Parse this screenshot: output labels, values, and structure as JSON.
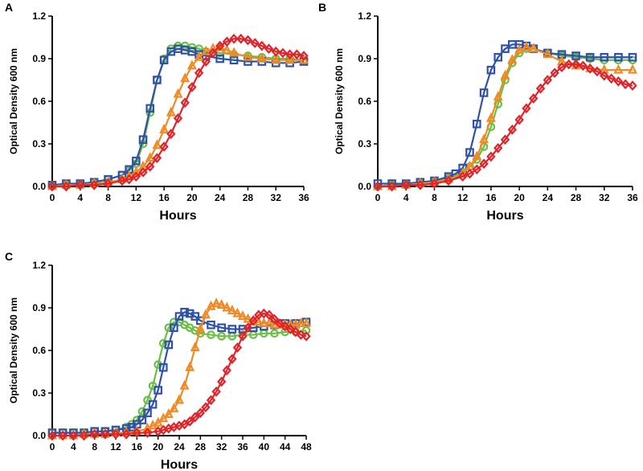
{
  "figure": {
    "panel_labels": [
      "A",
      "B",
      "C"
    ]
  },
  "chart_data": [
    {
      "panel": "A",
      "type": "line",
      "title": "",
      "xlabel": "Hours",
      "ylabel": "Optical Density 600 nm",
      "xlim": [
        0,
        36
      ],
      "ylim": [
        0,
        1.2
      ],
      "xticks": [
        "0",
        "4",
        "8",
        "12",
        "16",
        "20",
        "24",
        "28",
        "32",
        "36"
      ],
      "yticks": [
        "0.0",
        "0.3",
        "0.6",
        "0.9",
        "1.2"
      ],
      "series": [
        {
          "name": "green",
          "marker": "circle",
          "color": "#6abf45",
          "x": [
            0,
            2,
            4,
            6,
            8,
            10,
            11,
            12,
            13,
            14,
            15,
            16,
            17,
            18,
            19,
            20,
            21,
            22,
            24,
            26,
            28,
            30,
            32,
            34,
            36
          ],
          "y": [
            0.01,
            0.01,
            0.02,
            0.03,
            0.05,
            0.08,
            0.11,
            0.16,
            0.3,
            0.52,
            0.75,
            0.9,
            0.97,
            0.99,
            0.99,
            0.98,
            0.97,
            0.95,
            0.94,
            0.93,
            0.92,
            0.91,
            0.9,
            0.9,
            0.89
          ]
        },
        {
          "name": "blue",
          "marker": "square",
          "color": "#2f52a8",
          "x": [
            0,
            2,
            4,
            6,
            8,
            10,
            11,
            12,
            13,
            14,
            15,
            16,
            17,
            18,
            19,
            20,
            21,
            22,
            24,
            26,
            28,
            30,
            32,
            34,
            36
          ],
          "y": [
            0.01,
            0.02,
            0.02,
            0.03,
            0.05,
            0.08,
            0.12,
            0.18,
            0.33,
            0.55,
            0.75,
            0.89,
            0.95,
            0.97,
            0.96,
            0.95,
            0.93,
            0.92,
            0.9,
            0.89,
            0.88,
            0.88,
            0.87,
            0.87,
            0.88
          ]
        },
        {
          "name": "orange",
          "marker": "triangle",
          "color": "#f08a24",
          "x": [
            0,
            2,
            4,
            6,
            8,
            10,
            11,
            12,
            13,
            14,
            15,
            16,
            17,
            18,
            19,
            20,
            21,
            22,
            23,
            24,
            25,
            26,
            28,
            30,
            32,
            34,
            36
          ],
          "y": [
            0.0,
            0.01,
            0.01,
            0.02,
            0.03,
            0.05,
            0.07,
            0.1,
            0.14,
            0.2,
            0.29,
            0.4,
            0.52,
            0.65,
            0.76,
            0.85,
            0.91,
            0.95,
            0.97,
            0.98,
            0.96,
            0.94,
            0.91,
            0.9,
            0.89,
            0.89,
            0.89
          ]
        },
        {
          "name": "red",
          "marker": "diamond",
          "color": "#e0232a",
          "x": [
            0,
            2,
            4,
            6,
            8,
            10,
            11,
            12,
            13,
            14,
            15,
            16,
            17,
            18,
            19,
            20,
            21,
            22,
            23,
            24,
            25,
            26,
            27,
            28,
            29,
            30,
            31,
            32,
            33,
            34,
            35,
            36
          ],
          "y": [
            0.0,
            0.0,
            0.01,
            0.01,
            0.02,
            0.04,
            0.05,
            0.07,
            0.1,
            0.14,
            0.2,
            0.28,
            0.37,
            0.48,
            0.59,
            0.7,
            0.8,
            0.88,
            0.94,
            0.99,
            1.02,
            1.04,
            1.04,
            1.03,
            1.01,
            0.99,
            0.97,
            0.95,
            0.94,
            0.93,
            0.93,
            0.92
          ]
        }
      ]
    },
    {
      "panel": "B",
      "type": "line",
      "title": "",
      "xlabel": "Hours",
      "ylabel": "Optical Density 600 nm",
      "xlim": [
        0,
        36
      ],
      "ylim": [
        0,
        1.2
      ],
      "xticks": [
        "0",
        "4",
        "8",
        "12",
        "16",
        "20",
        "24",
        "28",
        "32",
        "36"
      ],
      "yticks": [
        "0.0",
        "0.3",
        "0.6",
        "0.9",
        "1.2"
      ],
      "series": [
        {
          "name": "green",
          "marker": "circle",
          "color": "#6abf45",
          "x": [
            0,
            2,
            4,
            6,
            8,
            10,
            12,
            13,
            14,
            15,
            16,
            17,
            18,
            19,
            20,
            21,
            22,
            24,
            26,
            28,
            30,
            32,
            34,
            36
          ],
          "y": [
            0.0,
            0.01,
            0.01,
            0.02,
            0.03,
            0.06,
            0.1,
            0.14,
            0.19,
            0.28,
            0.42,
            0.58,
            0.75,
            0.87,
            0.94,
            0.97,
            0.97,
            0.94,
            0.92,
            0.91,
            0.9,
            0.89,
            0.89,
            0.89
          ]
        },
        {
          "name": "blue",
          "marker": "square",
          "color": "#2f52a8",
          "x": [
            0,
            2,
            4,
            6,
            8,
            10,
            11,
            12,
            13,
            14,
            15,
            16,
            17,
            18,
            19,
            20,
            21,
            22,
            24,
            26,
            28,
            30,
            32,
            34,
            36
          ],
          "y": [
            0.02,
            0.02,
            0.02,
            0.03,
            0.04,
            0.07,
            0.09,
            0.13,
            0.24,
            0.44,
            0.66,
            0.82,
            0.91,
            0.97,
            1.0,
            1.0,
            0.99,
            0.97,
            0.94,
            0.93,
            0.92,
            0.91,
            0.91,
            0.91,
            0.91
          ]
        },
        {
          "name": "orange",
          "marker": "triangle",
          "color": "#f08a24",
          "x": [
            0,
            2,
            4,
            6,
            8,
            10,
            12,
            13,
            14,
            15,
            16,
            17,
            18,
            19,
            20,
            21,
            22,
            24,
            26,
            28,
            30,
            32,
            34,
            36
          ],
          "y": [
            0.0,
            0.0,
            0.01,
            0.02,
            0.03,
            0.05,
            0.09,
            0.14,
            0.21,
            0.33,
            0.48,
            0.63,
            0.78,
            0.89,
            0.96,
            0.98,
            0.97,
            0.93,
            0.88,
            0.85,
            0.83,
            0.82,
            0.82,
            0.82
          ]
        },
        {
          "name": "red",
          "marker": "diamond",
          "color": "#e0232a",
          "x": [
            0,
            2,
            4,
            6,
            8,
            10,
            12,
            13,
            14,
            15,
            16,
            17,
            18,
            19,
            20,
            21,
            22,
            23,
            24,
            25,
            26,
            27,
            28,
            29,
            30,
            31,
            32,
            33,
            34,
            35,
            36
          ],
          "y": [
            0.0,
            0.0,
            0.01,
            0.01,
            0.02,
            0.04,
            0.07,
            0.09,
            0.12,
            0.16,
            0.21,
            0.27,
            0.33,
            0.4,
            0.47,
            0.55,
            0.62,
            0.69,
            0.75,
            0.8,
            0.84,
            0.86,
            0.86,
            0.85,
            0.83,
            0.81,
            0.78,
            0.76,
            0.74,
            0.72,
            0.71
          ]
        }
      ]
    },
    {
      "panel": "C",
      "type": "line",
      "title": "",
      "xlabel": "Hours",
      "ylabel": "Optical Density 600 nm",
      "xlim": [
        0,
        48
      ],
      "ylim": [
        0,
        1.2
      ],
      "xticks": [
        "0",
        "4",
        "8",
        "12",
        "16",
        "20",
        "24",
        "28",
        "32",
        "36",
        "40",
        "44",
        "48"
      ],
      "yticks": [
        "0.0",
        "0.3",
        "0.6",
        "0.9",
        "1.2"
      ],
      "series": [
        {
          "name": "green",
          "marker": "circle",
          "color": "#6abf45",
          "x": [
            0,
            2,
            4,
            6,
            8,
            10,
            12,
            14,
            15,
            16,
            17,
            18,
            19,
            20,
            21,
            22,
            23,
            24,
            25,
            26,
            27,
            28,
            30,
            32,
            34,
            36,
            38,
            40,
            42,
            44,
            46,
            48
          ],
          "y": [
            0.02,
            0.02,
            0.02,
            0.02,
            0.03,
            0.03,
            0.04,
            0.06,
            0.08,
            0.11,
            0.17,
            0.25,
            0.35,
            0.5,
            0.65,
            0.76,
            0.8,
            0.8,
            0.78,
            0.76,
            0.74,
            0.72,
            0.71,
            0.7,
            0.7,
            0.71,
            0.71,
            0.72,
            0.72,
            0.73,
            0.73,
            0.74
          ]
        },
        {
          "name": "blue",
          "marker": "square",
          "color": "#2f52a8",
          "x": [
            0,
            2,
            4,
            6,
            8,
            10,
            12,
            14,
            15,
            16,
            17,
            18,
            19,
            20,
            21,
            22,
            23,
            24,
            25,
            26,
            27,
            28,
            30,
            32,
            34,
            36,
            38,
            40,
            42,
            44,
            46,
            48
          ],
          "y": [
            0.02,
            0.02,
            0.02,
            0.02,
            0.03,
            0.03,
            0.04,
            0.05,
            0.06,
            0.08,
            0.11,
            0.16,
            0.22,
            0.32,
            0.48,
            0.64,
            0.76,
            0.84,
            0.87,
            0.86,
            0.84,
            0.81,
            0.78,
            0.76,
            0.75,
            0.75,
            0.76,
            0.77,
            0.78,
            0.79,
            0.79,
            0.8
          ]
        },
        {
          "name": "orange",
          "marker": "triangle",
          "color": "#f08a24",
          "x": [
            0,
            2,
            4,
            6,
            8,
            10,
            12,
            14,
            16,
            18,
            19,
            20,
            21,
            22,
            23,
            24,
            25,
            26,
            27,
            28,
            29,
            30,
            31,
            32,
            33,
            34,
            35,
            36,
            37,
            38,
            39,
            40,
            41,
            42,
            43,
            44,
            45,
            46,
            47,
            48
          ],
          "y": [
            0.0,
            0.0,
            0.0,
            0.01,
            0.01,
            0.01,
            0.02,
            0.02,
            0.03,
            0.05,
            0.07,
            0.09,
            0.12,
            0.15,
            0.19,
            0.25,
            0.35,
            0.48,
            0.62,
            0.75,
            0.85,
            0.91,
            0.93,
            0.92,
            0.9,
            0.88,
            0.86,
            0.84,
            0.82,
            0.81,
            0.8,
            0.79,
            0.79,
            0.78,
            0.78,
            0.78,
            0.78,
            0.78,
            0.79,
            0.79
          ]
        },
        {
          "name": "red",
          "marker": "diamond",
          "color": "#e0232a",
          "x": [
            0,
            2,
            4,
            6,
            8,
            10,
            12,
            14,
            16,
            18,
            20,
            21,
            22,
            23,
            24,
            25,
            26,
            27,
            28,
            29,
            30,
            31,
            32,
            33,
            34,
            35,
            36,
            37,
            38,
            39,
            40,
            41,
            42,
            43,
            44,
            45,
            46,
            47,
            48
          ],
          "y": [
            0.0,
            0.0,
            0.0,
            0.0,
            0.01,
            0.01,
            0.01,
            0.01,
            0.02,
            0.02,
            0.03,
            0.04,
            0.05,
            0.06,
            0.07,
            0.08,
            0.1,
            0.13,
            0.16,
            0.2,
            0.25,
            0.31,
            0.38,
            0.46,
            0.54,
            0.62,
            0.7,
            0.76,
            0.81,
            0.85,
            0.86,
            0.85,
            0.82,
            0.79,
            0.77,
            0.75,
            0.73,
            0.71,
            0.7
          ]
        }
      ]
    }
  ]
}
